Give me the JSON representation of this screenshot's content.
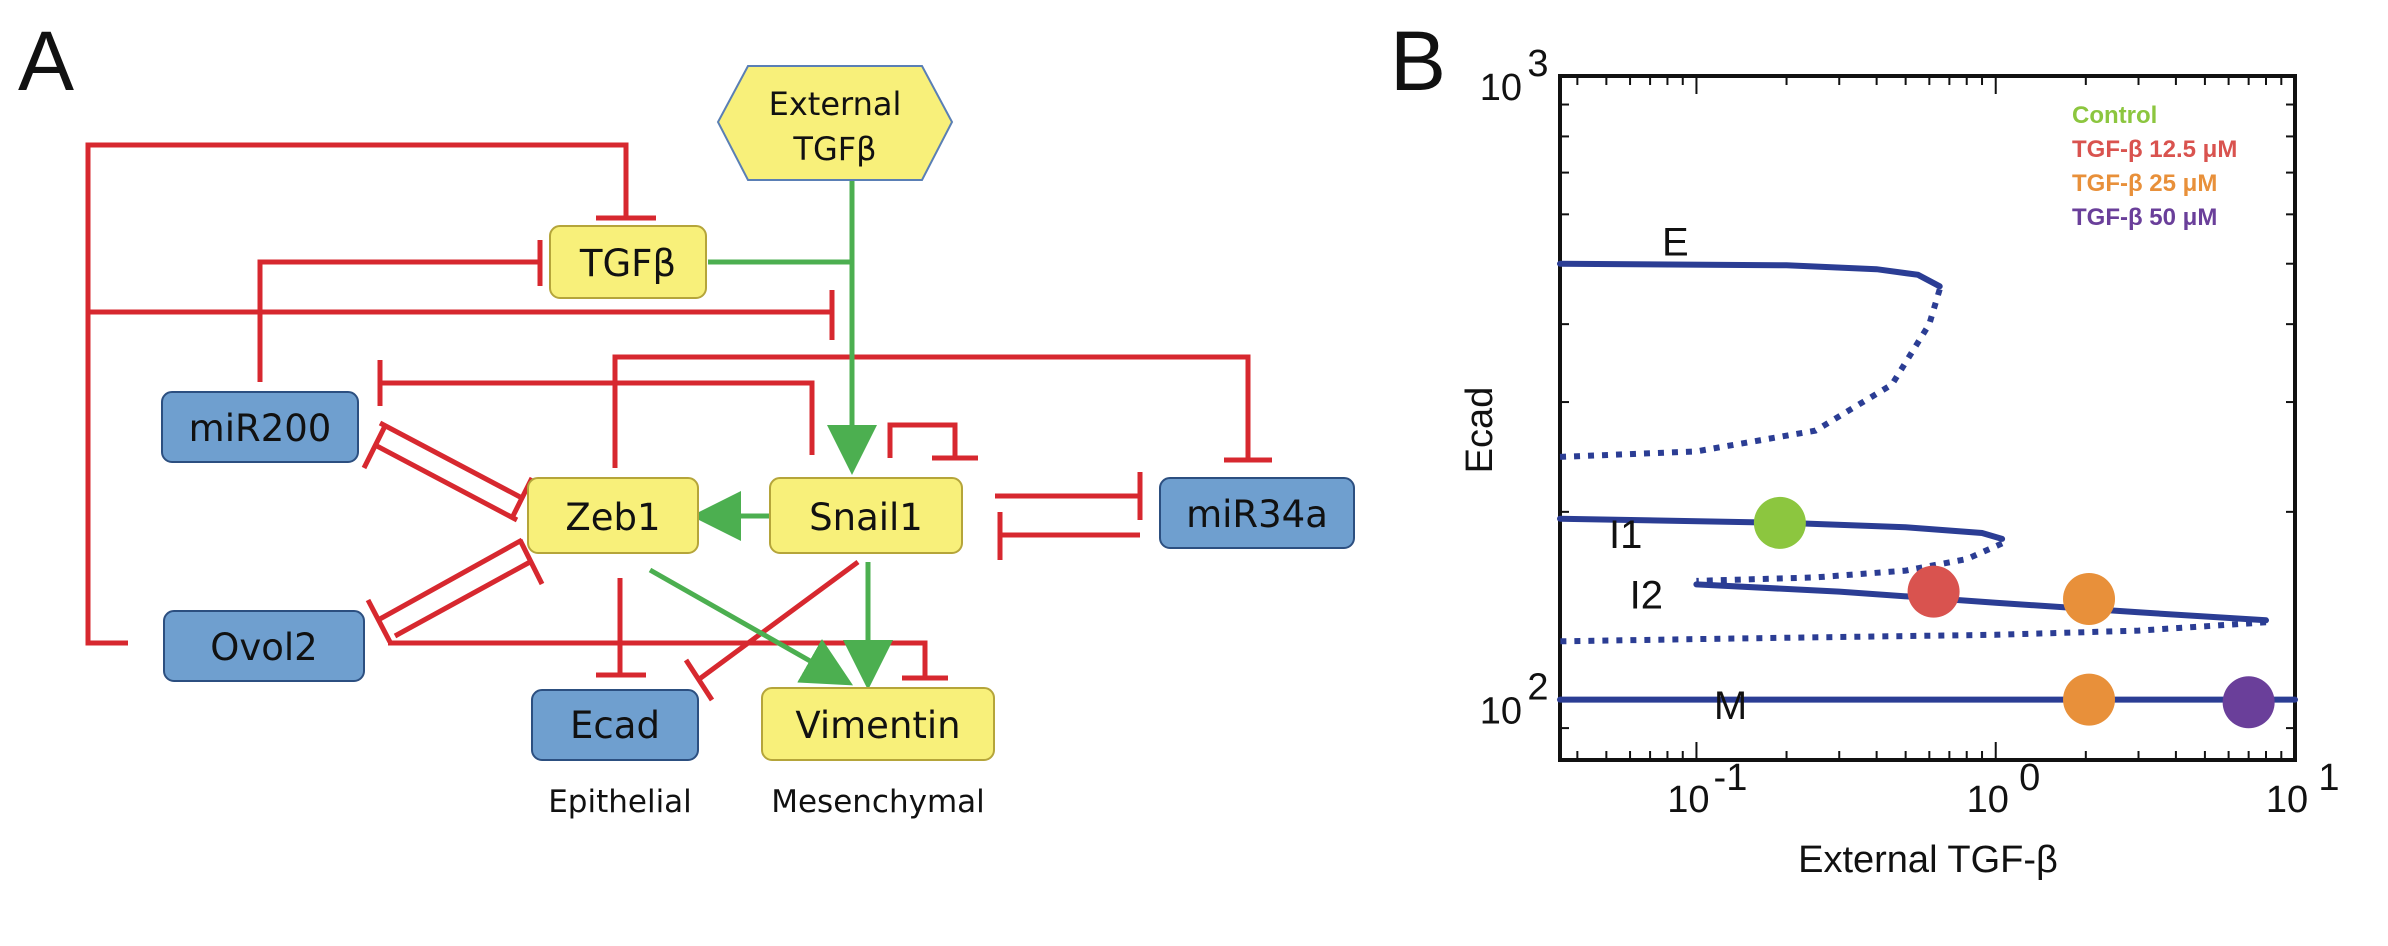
{
  "panel_a": {
    "letter": "A",
    "nodes": {
      "external_tgfb_line1": "External",
      "external_tgfb_line2": "TGFβ",
      "tgfb": "TGFβ",
      "mir200": "miR200",
      "zeb1": "Zeb1",
      "snail1": "Snail1",
      "mir34a": "miR34a",
      "ovol2": "Ovol2",
      "ecad": "Ecad",
      "vimentin": "Vimentin"
    },
    "captions": {
      "epithelial": "Epithelial",
      "mesenchymal": "Mesenchymal"
    },
    "colors": {
      "activation": "#4caf50",
      "inhibition": "#d7282f",
      "yellow_node": "#f8f07a",
      "blue_node": "#6f9fcf"
    }
  },
  "panel_b": {
    "letter": "B",
    "chart_data": {
      "type": "line",
      "xlabel": "External TGF-β",
      "ylabel": "Ecad",
      "xscale": "log",
      "yscale": "log",
      "xlim": [
        0.035,
        10
      ],
      "ylim": [
        80,
        1000
      ],
      "x_tick_labels": [
        {
          "base": "10",
          "exp": "-1",
          "value": 0.1
        },
        {
          "base": "10",
          "exp": "0",
          "value": 1
        },
        {
          "base": "10",
          "exp": "1",
          "value": 10
        }
      ],
      "y_tick_labels": [
        {
          "base": "10",
          "exp": "2",
          "value": 100
        },
        {
          "base": "10",
          "exp": "3",
          "value": 1000
        }
      ],
      "branches": [
        {
          "label": "E",
          "label_at": [
            0.085,
            515
          ],
          "stable": [
            [
              0.035,
              500
            ],
            [
              0.2,
              497
            ],
            [
              0.4,
              490
            ],
            [
              0.55,
              480
            ],
            [
              0.65,
              460
            ]
          ],
          "unstable": [
            [
              0.65,
              455
            ],
            [
              0.6,
              400
            ],
            [
              0.45,
              320
            ],
            [
              0.25,
              270
            ],
            [
              0.1,
              250
            ],
            [
              0.035,
              245
            ]
          ]
        },
        {
          "label": "I1",
          "label_at": [
            0.058,
            175
          ],
          "stable": [
            [
              0.035,
              195
            ],
            [
              0.2,
              192
            ],
            [
              0.5,
              189
            ],
            [
              0.9,
              185
            ],
            [
              1.05,
              181
            ]
          ],
          "unstable": [
            [
              1.05,
              178
            ],
            [
              0.8,
              168
            ],
            [
              0.5,
              161
            ],
            [
              0.25,
              157
            ],
            [
              0.1,
              155
            ]
          ]
        },
        {
          "label": "I2",
          "label_at": [
            0.068,
            140
          ],
          "stable": [
            [
              0.1,
              153
            ],
            [
              0.3,
              149
            ],
            [
              1,
              143
            ],
            [
              3,
              138
            ],
            [
              8,
              134
            ]
          ],
          "unstable": [
            [
              8,
              133
            ],
            [
              3,
              129
            ],
            [
              1,
              127
            ],
            [
              0.3,
              126
            ],
            [
              0.1,
              125
            ],
            [
              0.035,
              124
            ]
          ]
        },
        {
          "label": "M",
          "label_at": [
            0.13,
            93
          ],
          "stable": [
            [
              0.035,
              100
            ],
            [
              1,
              100
            ],
            [
              10,
              100
            ]
          ],
          "unstable": []
        }
      ],
      "series": [
        {
          "name": "Control",
          "color": "#8cc63f",
          "points": [
            [
              0.19,
              192
            ]
          ]
        },
        {
          "name": "TGF-β 12.5 μM",
          "color": "#d9534f",
          "points": [
            [
              0.62,
              149
            ]
          ]
        },
        {
          "name": "TGF-β 25 μM",
          "color": "#e8903a",
          "points": [
            [
              2.05,
              145
            ],
            [
              2.05,
              100
            ]
          ]
        },
        {
          "name": "TGF-β 50 μM",
          "color": "#6a3f9a",
          "points": [
            [
              7,
              99
            ]
          ]
        }
      ],
      "legend_position": "top-right",
      "line_color": "#2b3d94"
    }
  }
}
